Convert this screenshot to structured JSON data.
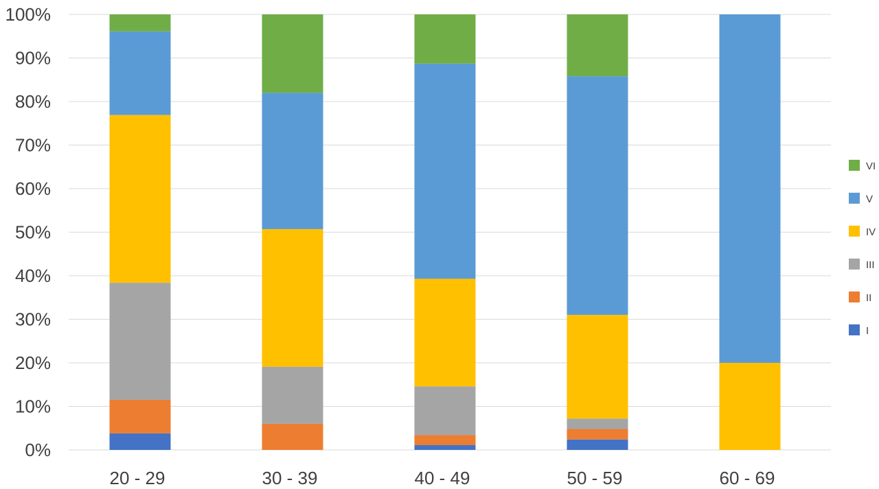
{
  "chart_data": {
    "type": "bar",
    "stacked": true,
    "stack_mode": "percent",
    "categories": [
      "20 - 29",
      "30 - 39",
      "40 - 49",
      "50 - 59",
      "60 - 69"
    ],
    "series": [
      {
        "name": "I",
        "color": "#4472c4",
        "values": [
          3.8,
          0,
          1.1,
          2.4,
          0
        ]
      },
      {
        "name": "II",
        "color": "#ed7d31",
        "values": [
          7.7,
          6.0,
          2.3,
          2.4,
          0
        ]
      },
      {
        "name": "III",
        "color": "#a5a5a5",
        "values": [
          26.9,
          13.1,
          11.2,
          2.4,
          0
        ]
      },
      {
        "name": "IV",
        "color": "#ffc000",
        "values": [
          38.5,
          31.6,
          24.7,
          23.8,
          20.0
        ]
      },
      {
        "name": "V",
        "color": "#5b9bd5",
        "values": [
          19.2,
          31.3,
          49.4,
          54.8,
          80.0
        ]
      },
      {
        "name": "VI",
        "color": "#70ad47",
        "values": [
          3.9,
          18.0,
          11.3,
          14.2,
          0
        ]
      }
    ],
    "y_ticks": [
      "0%",
      "10%",
      "20%",
      "30%",
      "40%",
      "50%",
      "60%",
      "70%",
      "80%",
      "90%",
      "100%"
    ],
    "ylim": [
      0,
      100
    ],
    "grid": true,
    "legend_position": "right",
    "legend_order": [
      "VI",
      "V",
      "IV",
      "III",
      "II",
      "I"
    ]
  }
}
